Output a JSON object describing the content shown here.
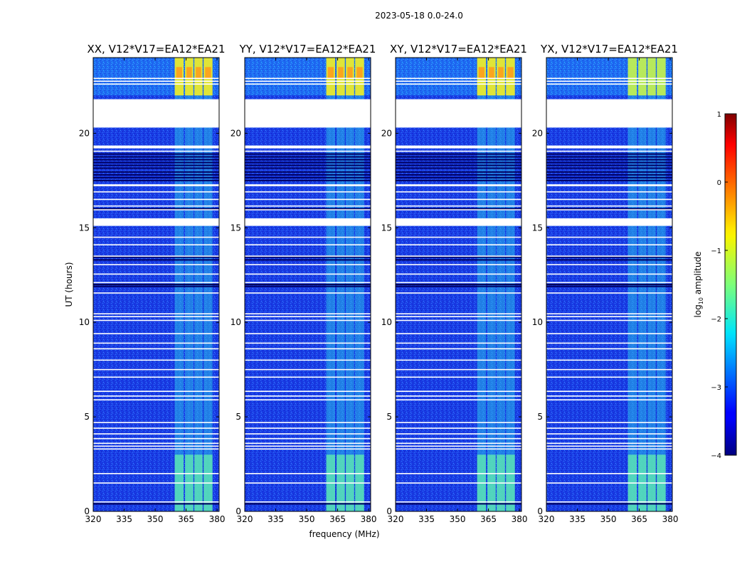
{
  "chart_data": {
    "type": "heatmap",
    "suptitle": "2023-05-18 0.0-24.0",
    "xlabel": "frequency (MHz)",
    "ylabel": "UT (hours)",
    "xlim": [
      320,
      381
    ],
    "ylim": [
      0,
      24
    ],
    "x_ticks": [
      "320",
      "335",
      "350",
      "365",
      "380"
    ],
    "y_ticks": [
      "0",
      "5",
      "10",
      "15",
      "20"
    ],
    "colorbar": {
      "label_prefix": "log",
      "label_sub": "10",
      "label_suffix": " amplitude",
      "range": [
        -4,
        1
      ],
      "ticks": [
        "1",
        "0",
        "−1",
        "−2",
        "−3",
        "−4"
      ],
      "tick_values": [
        1,
        0,
        -1,
        -2,
        -3,
        -4
      ],
      "colormap": "jet"
    },
    "panels": [
      {
        "title": "XX, V12*V17=EA12*EA21",
        "strong_top": 0.85
      },
      {
        "title": "YY, V12*V17=EA12*EA21",
        "strong_top": 1.0
      },
      {
        "title": "XY, V12*V17=EA12*EA21",
        "strong_top": 0.9
      },
      {
        "title": "YX, V12*V17=EA12*EA21",
        "strong_top": 0.75
      }
    ],
    "band_mhz": [
      [
        359.5,
        363.8
      ],
      [
        364.5,
        368.5
      ],
      [
        369.0,
        373.0
      ],
      [
        373.5,
        377.8
      ]
    ],
    "bright_segments_hours": [
      [
        0.0,
        3.0
      ],
      [
        22.0,
        24.0
      ]
    ],
    "flagged_hours": [
      [
        20.3,
        21.8
      ],
      [
        15.1,
        15.5
      ],
      [
        17.2,
        17.3
      ],
      [
        19.2,
        19.35
      ]
    ],
    "white_lines_hours": [
      0.5,
      1.5,
      2.0,
      3.3,
      3.45,
      3.6,
      3.85,
      4.1,
      4.4,
      4.7,
      5.9,
      6.1,
      6.35,
      7.1,
      7.5,
      8.0,
      8.6,
      8.9,
      9.4,
      10.1,
      10.3,
      10.45,
      11.55,
      12.1,
      12.55,
      13.05,
      13.5,
      14.1,
      14.5,
      15.95,
      16.15,
      16.5,
      16.9,
      19.05,
      22.6,
      22.75,
      22.9
    ],
    "dark_lines_hours": [
      0.4,
      11.9,
      12.0,
      13.3,
      13.45,
      16.0,
      17.5,
      17.65,
      17.8,
      17.95,
      18.15,
      18.3,
      18.45,
      18.6,
      18.75,
      18.9
    ]
  }
}
